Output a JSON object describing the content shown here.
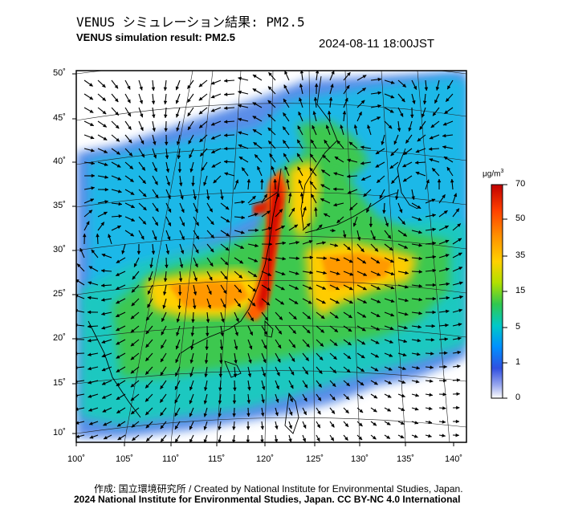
{
  "header": {
    "title_jp": "VENUS シミュレーション結果: PM2.5",
    "title_en": "VENUS simulation result: PM2.5",
    "timestamp": "2024-08-11 18:00JST"
  },
  "colorbar": {
    "unit_html": "μg/m<sup>3</sup>",
    "ticks": [
      "70",
      "50",
      "35",
      "15",
      "5",
      "1",
      "0"
    ],
    "colors": [
      "#c00000",
      "#ff5a00",
      "#ffa500",
      "#ffe000",
      "#9ee000",
      "#30c850",
      "#00c8c8",
      "#0090ff",
      "#2a50e0",
      "#6f7fe0",
      "#c8cff5",
      "#ffffff"
    ]
  },
  "axes": {
    "lat_labels": [
      "50˚",
      "45˚",
      "40˚",
      "35˚",
      "30˚",
      "25˚",
      "20˚",
      "15˚",
      "10˚"
    ],
    "lon_labels": [
      "100˚",
      "105˚",
      "110˚",
      "115˚",
      "120˚",
      "125˚",
      "130˚",
      "135˚",
      "140˚"
    ]
  },
  "footer": {
    "credit": "作成: 国立環境研究所 / Created by National Institute for Environmental Studies, Japan.",
    "license": "2024 National Institute for Environmental Studies, Japan. CC BY-NC 4.0 International"
  },
  "map_colors": {
    "ocean_low": "#4da3ff",
    "ocean_mid": "#00c8e0",
    "land_mid": "#36c850",
    "high": "#ffb000",
    "peak": "#e02000",
    "faint": "#8fa6f0",
    "frame": "#000000"
  }
}
